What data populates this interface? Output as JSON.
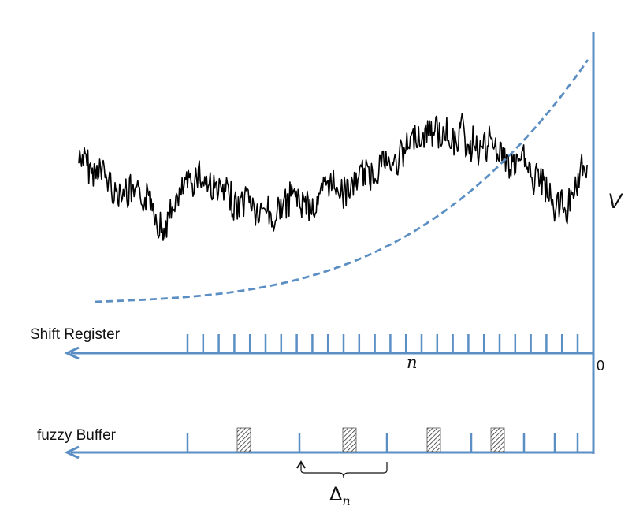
{
  "labels": {
    "v_axis": "V",
    "origin": "0",
    "n_axis": "n",
    "shift_register": "Shift Register",
    "fuzzy_buffer": "fuzzy Buffer",
    "delta_symbol": "Δ",
    "delta_subscript": "n"
  },
  "colors": {
    "axis": "#5b8fc4",
    "signal": "#000000",
    "threshold_curve": "#5b8fc4",
    "hatch": "#333333"
  },
  "shift_register": {
    "cell_count": 26
  },
  "fuzzy_buffer": {
    "sequence": [
      "tick",
      "hatched",
      "tick",
      "hatched",
      "tick",
      "hatched",
      "tick",
      "hatched",
      "tick",
      "tick",
      "tick"
    ]
  }
}
